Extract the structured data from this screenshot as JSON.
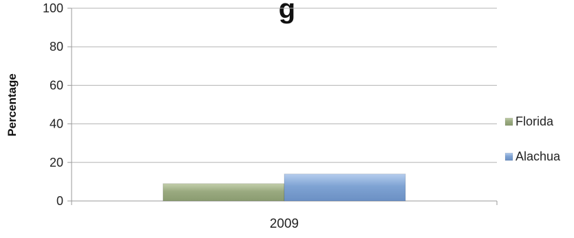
{
  "chart_data": {
    "type": "bar",
    "title_partial": "g",
    "categories": [
      "2009"
    ],
    "series": [
      {
        "name": "Florida",
        "values": [
          9
        ],
        "color": "#9aaa80"
      },
      {
        "name": "Alachua",
        "values": [
          14
        ],
        "color": "#7fa3d3"
      }
    ],
    "xlabel": "",
    "ylabel": "Percentage",
    "ylim": [
      0,
      100
    ],
    "yticks": [
      0,
      20,
      40,
      60,
      80,
      100
    ],
    "grid": true,
    "legend_position": "right"
  }
}
